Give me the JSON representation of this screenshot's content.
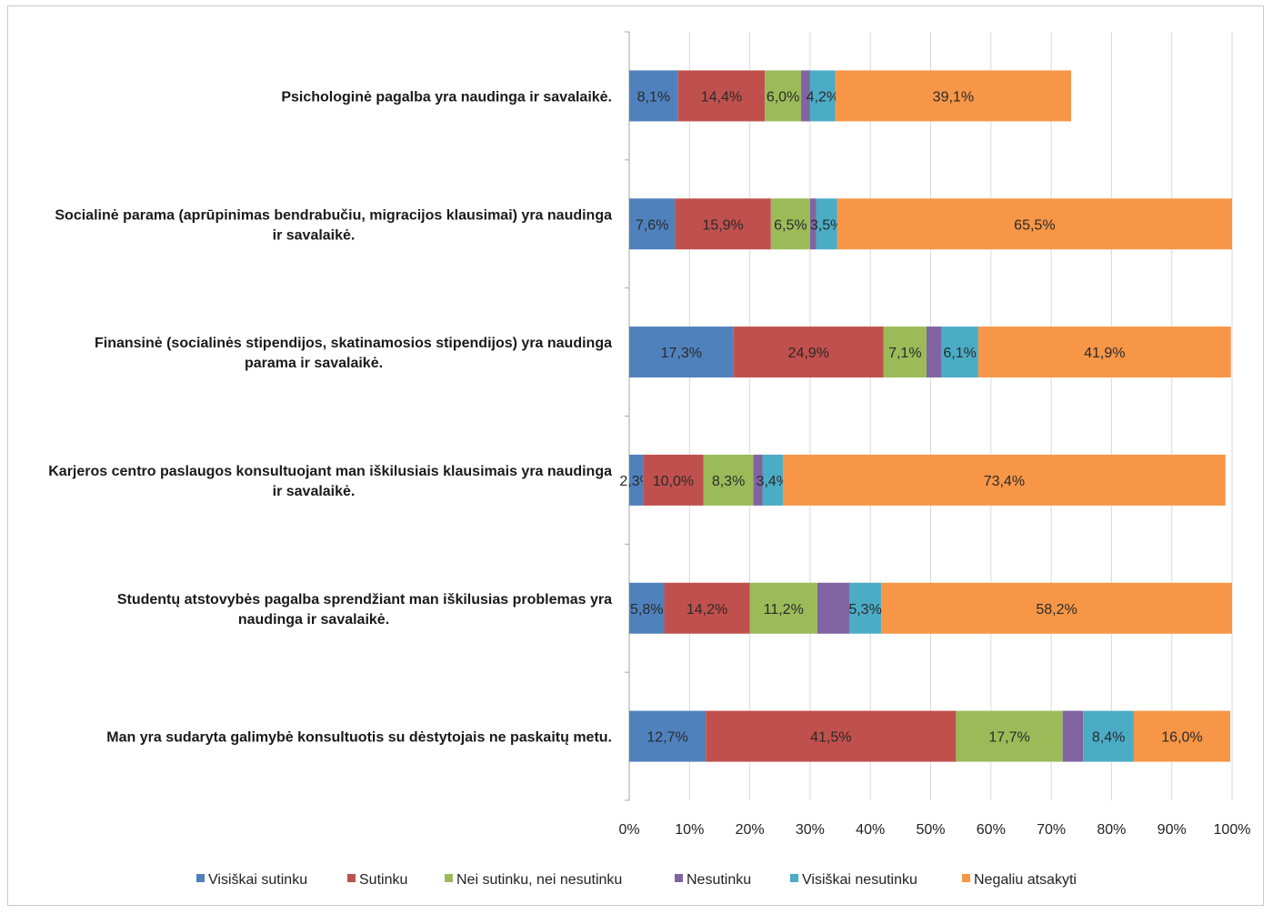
{
  "chart_data": {
    "type": "bar",
    "orientation": "horizontal",
    "stacked": true,
    "percent_stacked": true,
    "categories": [
      "Psichologinė pagalba yra naudinga ir savalaikė.",
      "Socialinė parama (aprūpinimas bendrabučiu, migracijos klausimai) yra naudinga ir savalaikė.",
      "Finansinė (socialinės stipendijos, skatinamosios stipendijos) yra naudinga parama ir savalaikė.",
      "Karjeros centro paslaugos konsultuojant man iškilusiais klausimais yra naudinga ir savalaikė.",
      "Studentų atstovybės pagalba sprendžiant man iškilusias problemas yra naudinga ir savalaikė.",
      "Man yra sudaryta galimybė konsultuotis su dėstytojais ne paskaitų metu."
    ],
    "category_lines": [
      [
        "Psichologinė pagalba yra naudinga ir savalaikė."
      ],
      [
        "Socialinė parama (aprūpinimas bendrabučiu, migracijos klausimai) yra naudinga",
        "ir savalaikė."
      ],
      [
        "Finansinė (socialinės stipendijos, skatinamosios stipendijos) yra naudinga",
        "parama ir savalaikė."
      ],
      [
        "Karjeros centro paslaugos konsultuojant man iškilusiais klausimais yra naudinga",
        "ir savalaikė."
      ],
      [
        "Studentų atstovybės pagalba sprendžiant man iškilusias problemas yra",
        "naudinga ir savalaikė."
      ],
      [
        "Man yra sudaryta galimybė konsultuotis su dėstytojais ne paskaitų metu."
      ]
    ],
    "series": [
      {
        "name": "Visiškai sutinku",
        "color": "#4f81bd",
        "values": [
          8.1,
          7.6,
          17.3,
          2.3,
          5.8,
          12.7
        ],
        "labels": [
          "8,1%",
          "7,6%",
          "17,3%",
          "2,3%",
          "5,8%",
          "12,7%"
        ]
      },
      {
        "name": "Sutinku",
        "color": "#c0504d",
        "values": [
          14.4,
          15.9,
          24.9,
          10.0,
          14.2,
          41.5
        ],
        "labels": [
          "14,4%",
          "15,9%",
          "24,9%",
          "10,0%",
          "14,2%",
          "41,5%"
        ]
      },
      {
        "name": "Nei sutinku, nei nesutinku",
        "color": "#9bbb59",
        "values": [
          6.0,
          6.5,
          7.1,
          8.3,
          11.2,
          17.7
        ],
        "labels": [
          "6,0%",
          "6,5%",
          "7,1%",
          "8,3%",
          "11,2%",
          "17,7%"
        ]
      },
      {
        "name": "Nesutinku",
        "color": "#8064a2",
        "values": [
          1.5,
          1.0,
          2.5,
          1.5,
          5.3,
          3.4
        ],
        "labels": [
          "",
          "",
          "",
          "",
          "",
          ""
        ]
      },
      {
        "name": "Visiškai nesutinku",
        "color": "#4bacc6",
        "values": [
          4.2,
          3.5,
          6.1,
          3.4,
          5.3,
          8.4
        ],
        "labels": [
          "4,2%",
          "3,5%",
          "6,1%",
          "3,4%",
          "5,3%",
          "8,4%"
        ]
      },
      {
        "name": "Negaliu atsakyti",
        "color": "#f79646",
        "values": [
          39.1,
          65.5,
          41.9,
          73.4,
          58.2,
          16.0
        ],
        "labels": [
          "39,1%",
          "65,5%",
          "41,9%",
          "73,4%",
          "58,2%",
          "16,0%"
        ]
      }
    ],
    "x_ticks": [
      "0%",
      "10%",
      "20%",
      "30%",
      "40%",
      "50%",
      "60%",
      "70%",
      "80%",
      "90%",
      "100%"
    ],
    "xlim": [
      0,
      100
    ],
    "grid": true,
    "legend_position": "bottom"
  }
}
